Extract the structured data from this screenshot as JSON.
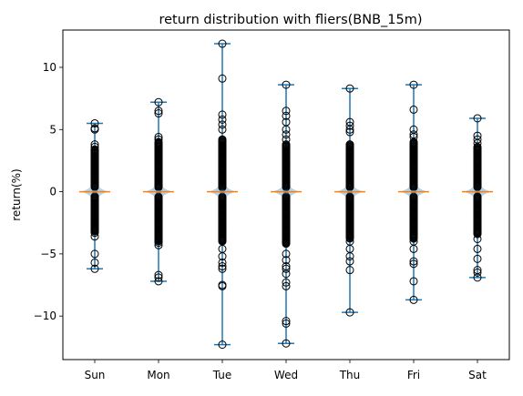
{
  "chart_data": {
    "type": "violin_box",
    "title": "return distribution with fliers(BNB_15m)",
    "xlabel": "",
    "ylabel": "return(%)",
    "ylim": [
      -13.5,
      13.0
    ],
    "yticks": [
      10,
      5,
      0,
      -5,
      -10
    ],
    "ytick_labels": [
      "10",
      "5",
      "0",
      "−5",
      "−10"
    ],
    "categories": [
      "Sun",
      "Mon",
      "Tue",
      "Wed",
      "Thu",
      "Fri",
      "Sat"
    ],
    "grid": false,
    "colors": {
      "whisker": "#1f77b4",
      "median": "#ff7f0e",
      "violin": "#9cc0dc",
      "flier": "#000000"
    },
    "series": [
      {
        "category": "Sun",
        "median": 0,
        "q1": -0.08,
        "q3": 0.08,
        "min": -6.2,
        "max": 5.5,
        "dense_range": [
          -3.2,
          3.4
        ],
        "fliers": [
          5.5,
          5.1,
          5.0,
          3.8,
          3.6,
          -3.3,
          -3.6,
          -5.0,
          -5.7,
          -6.2
        ]
      },
      {
        "category": "Mon",
        "median": 0,
        "q1": -0.08,
        "q3": 0.08,
        "min": -7.2,
        "max": 7.2,
        "dense_range": [
          -4.0,
          4.0
        ],
        "fliers": [
          7.2,
          6.5,
          6.3,
          4.4,
          4.2,
          -4.1,
          -4.3,
          -6.7,
          -6.9,
          -7.2
        ]
      },
      {
        "category": "Tue",
        "median": 0,
        "q1": -0.1,
        "q3": 0.1,
        "min": -12.3,
        "max": 11.9,
        "dense_range": [
          -4.0,
          4.2
        ],
        "fliers": [
          11.9,
          9.1,
          6.2,
          5.8,
          5.4,
          5.0,
          -4.6,
          -5.2,
          -5.7,
          -6.0,
          -6.2,
          -7.5,
          -7.6,
          -12.3
        ]
      },
      {
        "category": "Wed",
        "median": 0,
        "q1": -0.1,
        "q3": 0.1,
        "min": -12.2,
        "max": 8.6,
        "dense_range": [
          -4.2,
          3.8
        ],
        "fliers": [
          8.6,
          6.5,
          6.1,
          5.6,
          5.0,
          4.6,
          4.2,
          -5.0,
          -5.5,
          -6.0,
          -6.2,
          -6.6,
          -7.3,
          -7.6,
          -10.4,
          -10.6,
          -12.2
        ]
      },
      {
        "category": "Thu",
        "median": 0,
        "q1": -0.08,
        "q3": 0.08,
        "min": -9.7,
        "max": 8.3,
        "dense_range": [
          -3.8,
          3.8
        ],
        "fliers": [
          8.3,
          5.6,
          5.3,
          5.0,
          4.8,
          -4.0,
          -4.6,
          -5.2,
          -5.6,
          -6.3,
          -9.7
        ]
      },
      {
        "category": "Fri",
        "median": 0,
        "q1": -0.08,
        "q3": 0.08,
        "min": -8.7,
        "max": 8.6,
        "dense_range": [
          -3.8,
          4.0
        ],
        "fliers": [
          8.6,
          6.6,
          5.0,
          4.6,
          4.4,
          -4.0,
          -4.6,
          -5.6,
          -5.8,
          -7.2,
          -8.7
        ]
      },
      {
        "category": "Sat",
        "median": 0,
        "q1": -0.06,
        "q3": 0.06,
        "min": -6.9,
        "max": 5.9,
        "dense_range": [
          -3.4,
          3.6
        ],
        "fliers": [
          5.9,
          4.5,
          4.2,
          3.9,
          -3.8,
          -4.6,
          -5.4,
          -6.3,
          -6.5,
          -6.9
        ]
      }
    ]
  }
}
